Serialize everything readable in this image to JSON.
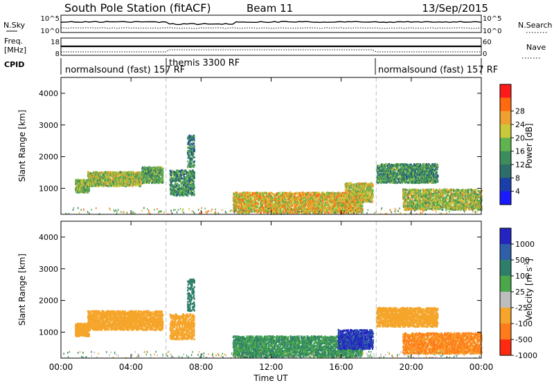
{
  "header": {
    "station": "South Pole Station (fitACF)",
    "beam": "Beam 11",
    "date": "13/Sep/2015"
  },
  "sky_panel": {
    "left_label": "N.Sky",
    "right_label": "N.Search",
    "ticks_left": [
      "10^5",
      "10^0"
    ],
    "ticks_right": [
      "10^5",
      "10^0"
    ]
  },
  "freq_panel": {
    "left_label_1": "Freq.",
    "left_label_2": "[MHz]",
    "right_label": "Nave",
    "ticks_left": [
      "18",
      "8"
    ],
    "ticks_right": [
      "60",
      "0"
    ]
  },
  "cpid": {
    "label": "CPID",
    "segments": [
      {
        "name": "normalsound (fast) 157 RF",
        "start_h": 0,
        "end_h": 6
      },
      {
        "name": "themis 3300 RF",
        "start_h": 6,
        "end_h": 18
      },
      {
        "name": "normalsound (fast) 157 RF",
        "start_h": 18,
        "end_h": 24
      }
    ]
  },
  "x_axis": {
    "label": "Time UT",
    "ticks": [
      "00:00",
      "04:00",
      "08:00",
      "12:00",
      "16:00",
      "20:00",
      "00:00"
    ],
    "range_h": [
      0,
      24
    ]
  },
  "y_axis": {
    "label": "Slant Range [km]",
    "ticks": [
      "1000",
      "2000",
      "3000",
      "4000"
    ],
    "range_km": [
      180,
      4500
    ]
  },
  "power_colorbar": {
    "label": "Power [dB]",
    "ticks": [
      "4",
      "8",
      "12",
      "16",
      "20",
      "24",
      "28"
    ],
    "colors": [
      "#1a1aff",
      "#1b3fa8",
      "#2e6e6a",
      "#3c8c5c",
      "#5fb44f",
      "#c9c93a",
      "#f0a030",
      "#ff6a10",
      "#ff1a1a"
    ]
  },
  "velocity_colorbar": {
    "label": "Velocity [m s",
    "label_sup": "-1",
    "label_end": "]",
    "ticks": [
      "1000",
      "500",
      "100",
      "25",
      "-25",
      "-100",
      "-500",
      "-1000"
    ],
    "colors": [
      "#2424c0",
      "#2e5fa8",
      "#2e7f6a",
      "#4aa84a",
      "#bdbdbd",
      "#f5a52a",
      "#ff7a1a",
      "#ff2a10"
    ]
  },
  "chart_data": {
    "type": "heatmap",
    "panels": [
      {
        "name": "power",
        "unit": "dB",
        "x": "Time UT (hours)",
        "y": "Slant Range [km]",
        "regions": [
          {
            "t": [
              0.8,
              1.6
            ],
            "r": [
              900,
              1300
            ],
            "v": 16
          },
          {
            "t": [
              1.5,
              4.6
            ],
            "r": [
              1100,
              1550
            ],
            "v": 18
          },
          {
            "t": [
              4.6,
              5.8
            ],
            "r": [
              1200,
              1700
            ],
            "v": 14
          },
          {
            "t": [
              6.2,
              7.6
            ],
            "r": [
              800,
              1600
            ],
            "v": 12
          },
          {
            "t": [
              7.2,
              7.6
            ],
            "r": [
              1700,
              2700
            ],
            "v": 10
          },
          {
            "t": [
              9.8,
              17.2
            ],
            "r": [
              250,
              900
            ],
            "v": 22
          },
          {
            "t": [
              16.2,
              17.8
            ],
            "r": [
              600,
              1200
            ],
            "v": 20
          },
          {
            "t": [
              18.0,
              21.5
            ],
            "r": [
              1200,
              1800
            ],
            "v": 12
          },
          {
            "t": [
              19.5,
              24.0
            ],
            "r": [
              350,
              1000
            ],
            "v": 18
          }
        ]
      },
      {
        "name": "velocity",
        "unit": "m s-1",
        "x": "Time UT (hours)",
        "y": "Slant Range [km]",
        "regions": [
          {
            "t": [
              0.8,
              1.6
            ],
            "r": [
              900,
              1300
            ],
            "v": -150
          },
          {
            "t": [
              1.5,
              5.8
            ],
            "r": [
              1100,
              1700
            ],
            "v": -180
          },
          {
            "t": [
              6.2,
              7.6
            ],
            "r": [
              800,
              1600
            ],
            "v": -150
          },
          {
            "t": [
              7.2,
              7.6
            ],
            "r": [
              1700,
              2700
            ],
            "v": 150
          },
          {
            "t": [
              9.8,
              17.2
            ],
            "r": [
              250,
              900
            ],
            "v": 60
          },
          {
            "t": [
              15.8,
              17.8
            ],
            "r": [
              500,
              1100
            ],
            "v": 800
          },
          {
            "t": [
              18.0,
              21.5
            ],
            "r": [
              1200,
              1800
            ],
            "v": -180
          },
          {
            "t": [
              19.5,
              24.0
            ],
            "r": [
              350,
              1000
            ],
            "v": -350
          }
        ]
      }
    ]
  }
}
